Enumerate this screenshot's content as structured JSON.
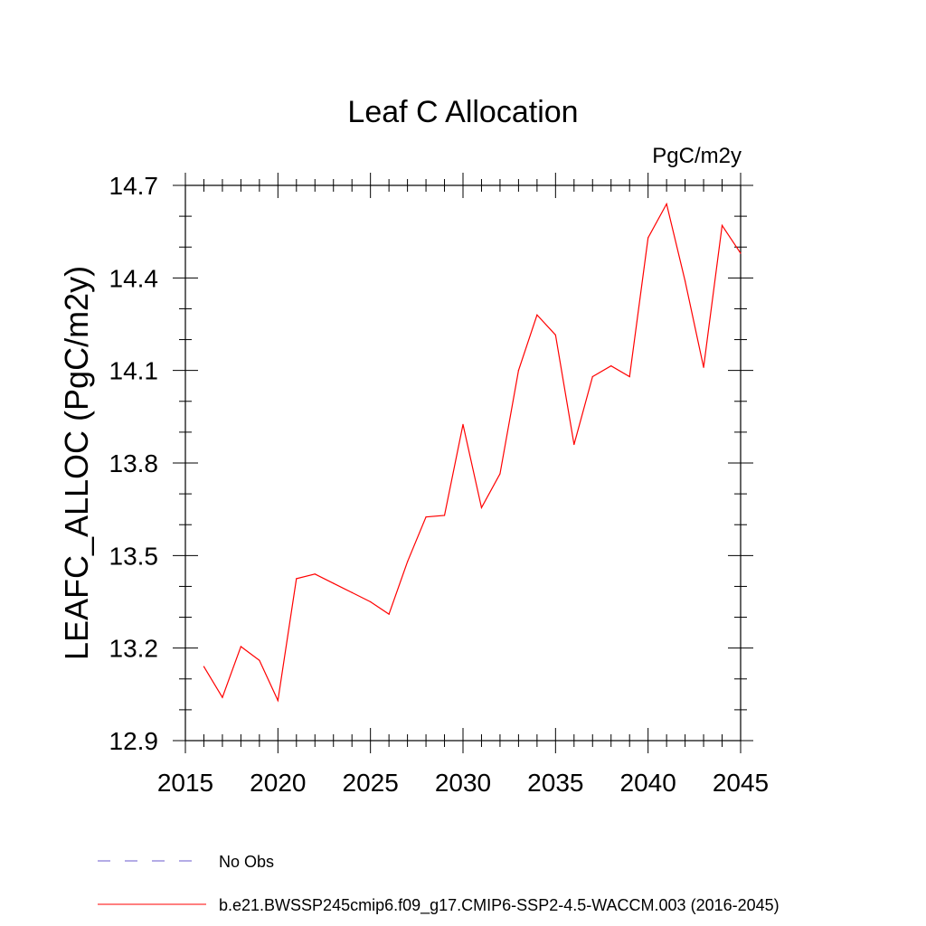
{
  "chart_data": {
    "type": "line",
    "title": "Leaf C Allocation",
    "units_label": "PgC/m2y",
    "ylabel": "LEAFC_ALLOC  (PgC/m2y)",
    "xlabel": "",
    "xlim": [
      2015,
      2045
    ],
    "ylim": [
      12.9,
      14.7
    ],
    "x_ticks": [
      2015,
      2020,
      2025,
      2030,
      2035,
      2040,
      2045
    ],
    "y_ticks": [
      12.9,
      13.2,
      13.5,
      13.8,
      14.1,
      14.4,
      14.7
    ],
    "x_minor_step": 1,
    "y_minor_step": 0.1,
    "grid": false,
    "legend_position": "bottom-left",
    "series": [
      {
        "name": "b.e21.BWSSP245cmip6.f09_g17.CMIP6-SSP2-4.5-WACCM.003 (2016-2045)",
        "color": "#ff0000",
        "dash": "solid",
        "x": [
          2016,
          2017,
          2018,
          2019,
          2020,
          2021,
          2022,
          2023,
          2024,
          2025,
          2026,
          2027,
          2028,
          2029,
          2030,
          2031,
          2032,
          2033,
          2034,
          2035,
          2036,
          2037,
          2038,
          2039,
          2040,
          2041,
          2042,
          2043,
          2044,
          2045
        ],
        "values": [
          13.14,
          13.04,
          13.205,
          13.16,
          13.03,
          13.425,
          13.44,
          13.41,
          13.38,
          13.35,
          13.31,
          13.48,
          13.625,
          13.63,
          13.925,
          13.655,
          13.765,
          14.1,
          14.28,
          14.215,
          13.86,
          14.08,
          14.115,
          14.08,
          14.53,
          14.64,
          14.39,
          14.11,
          14.57,
          14.48
        ]
      }
    ],
    "legend": [
      {
        "label": "No Obs",
        "color": "#6a5acd",
        "dash": "dashed"
      },
      {
        "label": "b.e21.BWSSP245cmip6.f09_g17.CMIP6-SSP2-4.5-WACCM.003 (2016-2045)",
        "color": "#ff0000",
        "dash": "solid"
      }
    ]
  }
}
